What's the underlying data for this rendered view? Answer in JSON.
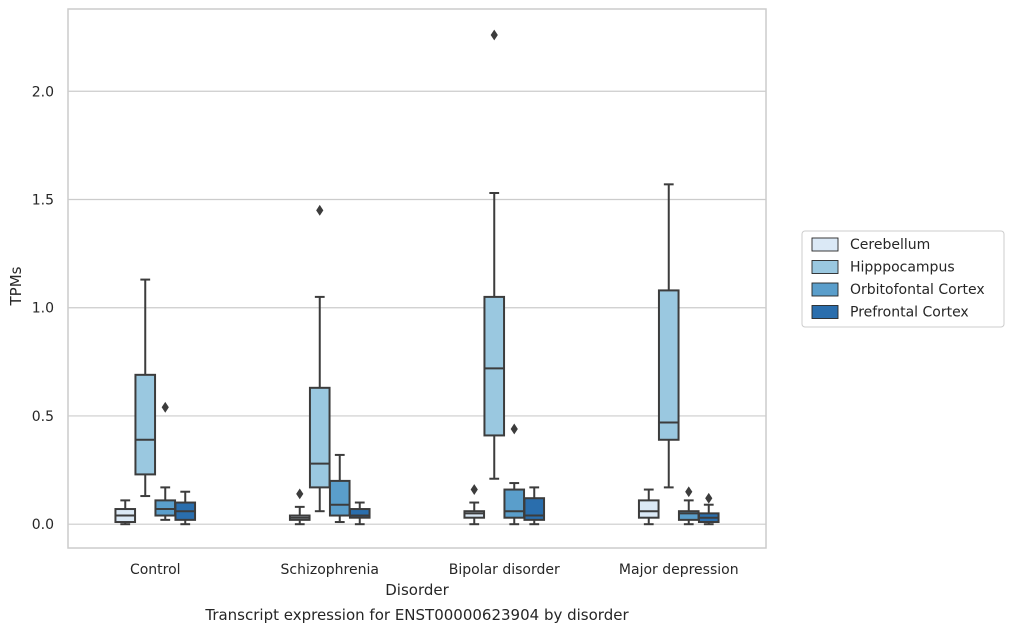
{
  "chart_data": {
    "type": "boxplot",
    "caption": "Transcript expression for ENST00000623904 by disorder",
    "xlabel": "Disorder",
    "ylabel": "TPMs",
    "ylim": [
      -0.11,
      2.38
    ],
    "yticks": [
      "0.0",
      "0.5",
      "1.0",
      "1.5",
      "2.0"
    ],
    "grid": "horizontal",
    "legend_position": "right",
    "categories": [
      "Control",
      "Schizophrenia",
      "Bipolar disorder",
      "Major depression"
    ],
    "series": [
      {
        "name": "Cerebellum",
        "color": "#dbe9f6",
        "boxes": [
          {
            "whisker_low": 0.0,
            "q1": 0.01,
            "median": 0.04,
            "q3": 0.07,
            "whisker_high": 0.11,
            "outliers": []
          },
          {
            "whisker_low": 0.0,
            "q1": 0.02,
            "median": 0.03,
            "q3": 0.04,
            "whisker_high": 0.08,
            "outliers": [
              0.14
            ]
          },
          {
            "whisker_low": 0.0,
            "q1": 0.03,
            "median": 0.05,
            "q3": 0.06,
            "whisker_high": 0.1,
            "outliers": [
              0.16
            ]
          },
          {
            "whisker_low": 0.0,
            "q1": 0.03,
            "median": 0.06,
            "q3": 0.11,
            "whisker_high": 0.16,
            "outliers": []
          }
        ]
      },
      {
        "name": "Hipppocampus",
        "color": "#9ac8e0",
        "boxes": [
          {
            "whisker_low": 0.13,
            "q1": 0.23,
            "median": 0.39,
            "q3": 0.69,
            "whisker_high": 1.13,
            "outliers": []
          },
          {
            "whisker_low": 0.06,
            "q1": 0.17,
            "median": 0.28,
            "q3": 0.63,
            "whisker_high": 1.05,
            "outliers": [
              1.45
            ]
          },
          {
            "whisker_low": 0.21,
            "q1": 0.41,
            "median": 0.72,
            "q3": 1.05,
            "whisker_high": 1.53,
            "outliers": [
              2.26
            ]
          },
          {
            "whisker_low": 0.17,
            "q1": 0.39,
            "median": 0.47,
            "q3": 1.08,
            "whisker_high": 1.57,
            "outliers": []
          }
        ]
      },
      {
        "name": "Orbitofontal Cortex",
        "color": "#5a9ecb",
        "boxes": [
          {
            "whisker_low": 0.02,
            "q1": 0.04,
            "median": 0.07,
            "q3": 0.11,
            "whisker_high": 0.17,
            "outliers": [
              0.54
            ]
          },
          {
            "whisker_low": 0.01,
            "q1": 0.04,
            "median": 0.09,
            "q3": 0.2,
            "whisker_high": 0.32,
            "outliers": []
          },
          {
            "whisker_low": 0.0,
            "q1": 0.03,
            "median": 0.06,
            "q3": 0.16,
            "whisker_high": 0.19,
            "outliers": [
              0.44
            ]
          },
          {
            "whisker_low": 0.0,
            "q1": 0.02,
            "median": 0.05,
            "q3": 0.06,
            "whisker_high": 0.11,
            "outliers": [
              0.15
            ]
          }
        ]
      },
      {
        "name": "Prefrontal Cortex",
        "color": "#2a6ead",
        "boxes": [
          {
            "whisker_low": 0.0,
            "q1": 0.02,
            "median": 0.06,
            "q3": 0.1,
            "whisker_high": 0.15,
            "outliers": []
          },
          {
            "whisker_low": 0.0,
            "q1": 0.03,
            "median": 0.04,
            "q3": 0.07,
            "whisker_high": 0.1,
            "outliers": []
          },
          {
            "whisker_low": 0.0,
            "q1": 0.02,
            "median": 0.04,
            "q3": 0.12,
            "whisker_high": 0.17,
            "outliers": []
          },
          {
            "whisker_low": 0.0,
            "q1": 0.01,
            "median": 0.03,
            "q3": 0.05,
            "whisker_high": 0.09,
            "outliers": [
              0.12
            ]
          }
        ]
      }
    ]
  }
}
